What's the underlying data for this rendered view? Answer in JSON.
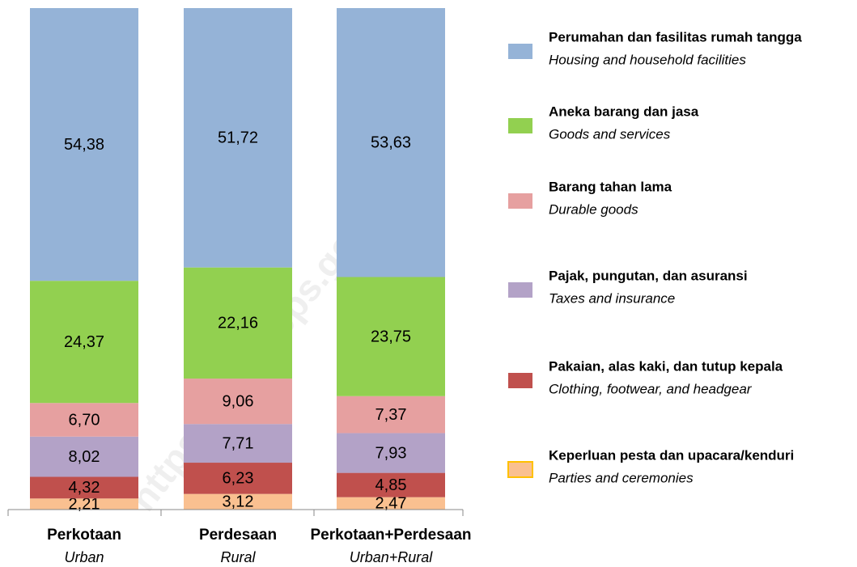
{
  "chart_data": {
    "type": "stacked_bar",
    "categories": [
      "Perkotaan",
      "Perdesaan",
      "Perkotaan+Perdesaan"
    ],
    "categories_en": [
      "Urban",
      "Rural",
      "Urban+Rural"
    ],
    "ylim": [
      0,
      100
    ],
    "series": [
      {
        "name": "Keperluan pesta dan upacara/kenduri",
        "name_en": "Parties and ceremonies",
        "color": "#fac090",
        "values": [
          2.21,
          3.12,
          2.47
        ],
        "value_labels": [
          "2,21",
          "3,12",
          "2,47"
        ]
      },
      {
        "name": "Pakaian, alas kaki, dan tutup kepala",
        "name_en": "Clothing, footwear, and headgear",
        "color": "#c0504d",
        "values": [
          4.32,
          6.23,
          4.85
        ],
        "value_labels": [
          "4,32",
          "6,23",
          "4,85"
        ]
      },
      {
        "name": "Pajak, pungutan, dan asuransi",
        "name_en": "Taxes and insurance",
        "color": "#b3a2c7",
        "values": [
          8.02,
          7.71,
          7.93
        ],
        "value_labels": [
          "8,02",
          "7,71",
          "7,93"
        ]
      },
      {
        "name": "Barang tahan lama",
        "name_en": "Durable goods",
        "color": "#e6a0a0",
        "values": [
          6.7,
          9.06,
          7.37
        ],
        "value_labels": [
          "6,70",
          "9,06",
          "7,37"
        ]
      },
      {
        "name": "Aneka barang dan jasa",
        "name_en": "Goods and services",
        "color": "#92d050",
        "values": [
          24.37,
          22.16,
          23.75
        ],
        "value_labels": [
          "24,37",
          "22,16",
          "23,75"
        ]
      },
      {
        "name": "Perumahan dan fasilitas rumah tangga",
        "name_en": "Housing and household facilities",
        "color": "#95b3d7",
        "values": [
          54.38,
          51.72,
          53.63
        ],
        "value_labels": [
          "54,38",
          "51,72",
          "53,63"
        ]
      }
    ]
  },
  "watermark": "https://www.bps.go.id"
}
